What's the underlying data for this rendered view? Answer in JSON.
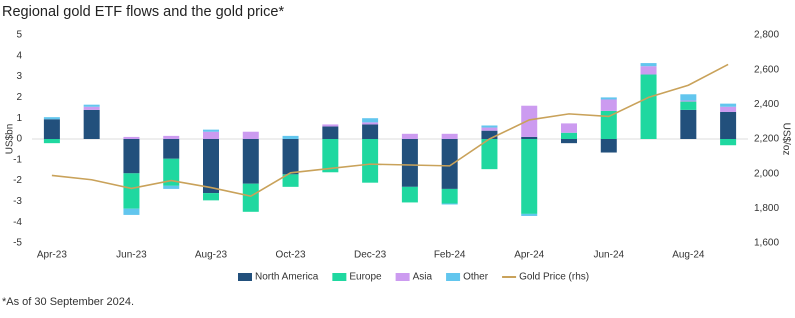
{
  "chart_data": {
    "type": "bar",
    "title": "Regional gold ETF flows and the gold price*",
    "note": "*As of 30 September 2024.",
    "y_label": "US$bn",
    "y2_label": "US$/oz",
    "categories": [
      "Apr-23",
      null,
      "Jun-23",
      null,
      "Aug-23",
      null,
      "Oct-23",
      null,
      "Dec-23",
      null,
      "Feb-24",
      null,
      "Apr-24",
      null,
      "Jun-24",
      null,
      "Aug-24",
      null
    ],
    "series": [
      {
        "name": "North America",
        "color": "#22507c",
        "values": [
          0.95,
          1.4,
          -1.65,
          -0.95,
          -2.6,
          -2.15,
          -1.7,
          0.6,
          0.7,
          -2.3,
          -2.4,
          0.4,
          0.1,
          -0.2,
          -0.65,
          0,
          1.4,
          1.3
        ]
      },
      {
        "name": "Europe",
        "color": "#1fd8a0",
        "values": [
          -0.2,
          0,
          -1.7,
          -1.3,
          -0.35,
          -1.35,
          -0.6,
          -1.6,
          -2.1,
          -0.75,
          -0.7,
          -1.45,
          -3.6,
          0.3,
          1.35,
          3.1,
          0.4,
          -0.3
        ]
      },
      {
        "name": "Asia",
        "color": "#cc9bf0",
        "values": [
          0,
          0.15,
          0.1,
          0.15,
          0.35,
          0.35,
          0,
          0.1,
          0.1,
          0.25,
          0.25,
          0.15,
          1.5,
          0.45,
          0.55,
          0.4,
          0.05,
          0.25
        ]
      },
      {
        "name": "Other",
        "color": "#62c6ee",
        "values": [
          0.1,
          0.1,
          -0.3,
          -0.15,
          0.1,
          0,
          0.15,
          0,
          0.2,
          0,
          -0.05,
          0.1,
          -0.1,
          0,
          0.1,
          0.15,
          0.3,
          0.15
        ]
      },
      {
        "name": "Gold Price (rhs)",
        "type": "line",
        "axis": "y2",
        "color": "#c9a25a",
        "values": [
          1990,
          1965,
          1915,
          1960,
          1920,
          1870,
          2005,
          2030,
          2055,
          2050,
          2045,
          2200,
          2310,
          2345,
          2330,
          2440,
          2510,
          2630
        ]
      }
    ],
    "ylim": [
      -5,
      5
    ],
    "yticks": [
      -5,
      -4,
      -3,
      -2,
      -1,
      0,
      1,
      2,
      3,
      4,
      5
    ],
    "y2lim": [
      1600,
      2800
    ],
    "y2ticks": [
      {
        "value": 1600,
        "label": "1,600"
      },
      {
        "value": 1800,
        "label": "1,800"
      },
      {
        "value": 2000,
        "label": "2,000"
      },
      {
        "value": 2200,
        "label": "2,200"
      },
      {
        "value": 2400,
        "label": "2,400"
      },
      {
        "value": 2600,
        "label": "2,600"
      },
      {
        "value": 2800,
        "label": "2,800"
      }
    ]
  }
}
